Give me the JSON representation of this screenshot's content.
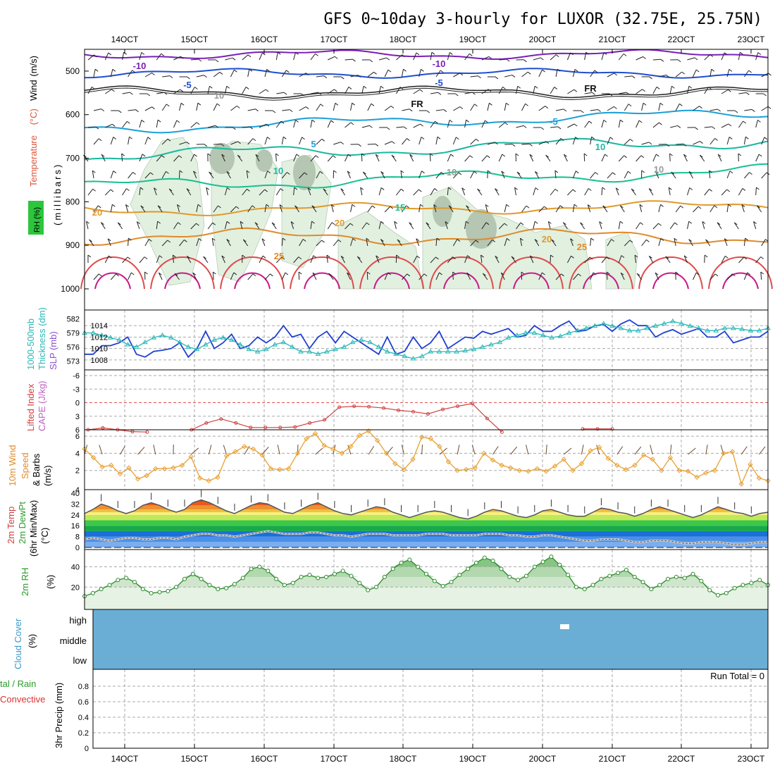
{
  "title": "GFS 0~10day 3-hourly for LUXOR (32.75E, 25.75N)",
  "x_ticks": [
    "14OCT",
    "15OCT",
    "16OCT",
    "17OCT",
    "18OCT",
    "19OCT",
    "20OCT",
    "21OCT",
    "22OCT",
    "23OCT"
  ],
  "colors": {
    "blue": "#1f3fd0",
    "cyan": "#2ab8b8",
    "red": "#d33",
    "orange": "#e8a030",
    "green": "#3a3",
    "cloud": "#6aaed6"
  },
  "chart_data": [
    {
      "type": "line",
      "name": "upper-air",
      "ylabel_parts": [
        "Temperature",
        "(°C)",
        "Wind",
        "(m/s)"
      ],
      "rh_label": "RH (%)",
      "axis_label": "(millibars)",
      "ylim": [
        1000,
        450
      ],
      "yticks": [
        500,
        600,
        700,
        800,
        900,
        1000
      ],
      "contour_labels": [
        "-10",
        "-10",
        "-5",
        "-5",
        "FR",
        "FR",
        "-5",
        "5",
        "10",
        "10",
        "15",
        "20",
        "20",
        "20",
        "25",
        "25",
        "10",
        "10",
        "10"
      ]
    },
    {
      "type": "line",
      "name": "slp-thickness",
      "ylabel_left": [
        "1000-500mb",
        "Thickness (dm)"
      ],
      "ylabel_right": "SLP (mb)",
      "thickness_ticks": [
        573,
        576,
        579,
        582
      ],
      "slp_ticks": [
        1008,
        1010,
        1012,
        1014
      ],
      "slp": [
        1009,
        1009,
        1010.5,
        1010.5,
        1011,
        1012,
        1009,
        1008.5,
        1009.5,
        1009.7,
        1010,
        1011,
        1008.5,
        1010,
        1013,
        1010,
        1011,
        1012.5,
        1010,
        1010.5,
        1012,
        1011,
        1012,
        1014,
        1012,
        1012.5,
        1010,
        1012,
        1013,
        1011,
        1013,
        1012,
        1011,
        1010,
        1009,
        1012,
        1009,
        1009.5,
        1012,
        1010,
        1011,
        1013,
        1010,
        1011,
        1012,
        1011.8,
        1013,
        1012.5,
        1013,
        1013.5,
        1012,
        1012.3,
        1014,
        1013,
        1013,
        1014,
        1014.8,
        1013,
        1013.2,
        1014,
        1014.2,
        1013,
        1014.3,
        1015,
        1014,
        1014,
        1012,
        1012.8,
        1013.3,
        1012.5,
        1013,
        1013.5,
        1012,
        1012,
        1013,
        1011,
        1011.5,
        1012,
        1012,
        1013
      ],
      "thickness": [
        579,
        579,
        578.5,
        578,
        577.5,
        576.5,
        576,
        577,
        578,
        578.5,
        578,
        577,
        576,
        575.5,
        576.5,
        577.5,
        578,
        577.5,
        576.5,
        575.5,
        575,
        575.5,
        576.5,
        577,
        576,
        575,
        575,
        574.5,
        575,
        575.5,
        576,
        577,
        577.5,
        577,
        576,
        575,
        574.5,
        574,
        573.5,
        574,
        575,
        575,
        575,
        575,
        575.2,
        575.5,
        576,
        576.5,
        577,
        578,
        578.5,
        579,
        579,
        578.5,
        578,
        578.3,
        579,
        579.5,
        580,
        580.5,
        581,
        580.5,
        580,
        579.5,
        579.5,
        580,
        580.5,
        581,
        581.5,
        581,
        580.5,
        580,
        579.5,
        579.5,
        580,
        580,
        579.8,
        579.5,
        579.5,
        580
      ]
    },
    {
      "type": "line",
      "name": "stability",
      "ylabel_left": "Lifted Index",
      "ylabel_right": "CAPE (J/kg)",
      "ytick_labels": [
        "-6",
        "-3",
        "0",
        "3",
        "6"
      ],
      "li": [
        6,
        5.6,
        6,
        6.4,
        6.5,
        null,
        null,
        6,
        4.5,
        3.6,
        4.5,
        5.5,
        5.5,
        5.5,
        5.4,
        4.5,
        3.8,
        1,
        0.8,
        0.9,
        1.2,
        1.7,
        2,
        2.5,
        1.5,
        0.8,
        0.2,
        3.5,
        6.5,
        null,
        null,
        null,
        null,
        null,
        null,
        null,
        null,
        null,
        null,
        null,
        null,
        null,
        null,
        5.8,
        5.8,
        5.8,
        null
      ]
    },
    {
      "type": "line",
      "name": "10m-wind",
      "ylabel_parts": [
        "10m Wind",
        "Speed",
        "& Barbs",
        "(m/s)"
      ],
      "ylim": [
        0,
        6.5
      ],
      "yticks": [
        2,
        4,
        6
      ],
      "speed": [
        4.5,
        3.5,
        2.4,
        2.6,
        1.6,
        2.3,
        1.0,
        1.4,
        2.2,
        2.2,
        2.3,
        2.6,
        3.6,
        1.1,
        0.8,
        1.2,
        3.7,
        4.2,
        4.8,
        4.5,
        3.8,
        2.2,
        2.1,
        2.2,
        4.0,
        5.7,
        6.3,
        4.9,
        4.5,
        4.0,
        4.8,
        6.1,
        6.6,
        5.5,
        4.0,
        2.8,
        2.1,
        3.3,
        5.9,
        5.7,
        4.8,
        3.0,
        2.0,
        2.1,
        2.3,
        4.0,
        3.2,
        2.6,
        2.3,
        2.0,
        1.9,
        2.2,
        1.9,
        2.5,
        3.3,
        2.0,
        2.8,
        4.3,
        4.7,
        3.4,
        2.6,
        2.1,
        2.6,
        3.8,
        3.3,
        2.0,
        3.5,
        2.0,
        1.9,
        1.2,
        1.7,
        2.0,
        4.0,
        4.2,
        0.4,
        2.7,
        1.1,
        0.8
      ]
    },
    {
      "type": "area",
      "name": "2m-temp",
      "ylabel_parts": [
        "2m Temp",
        "2m DewPt",
        "(6hr Min/Max)",
        "(°C)"
      ],
      "ylim": [
        0,
        40
      ],
      "ytick_labels": [
        "0",
        "8",
        "16",
        "24",
        "32",
        "40"
      ],
      "temp": [
        25,
        28,
        32,
        30,
        27,
        25,
        27,
        31,
        33,
        31,
        28,
        26,
        28,
        33,
        35,
        33,
        30,
        27,
        25,
        28,
        31,
        33,
        32,
        29,
        26,
        25,
        28,
        31,
        33,
        30,
        27,
        25,
        24,
        26,
        28,
        30,
        29,
        26,
        24,
        22,
        24,
        26,
        27,
        26,
        24,
        22,
        21,
        23,
        26,
        28,
        27,
        25,
        23,
        22,
        24,
        27,
        28,
        26,
        24,
        23,
        23,
        26,
        29,
        28,
        26,
        25,
        23,
        25,
        28,
        30,
        28,
        26,
        24,
        22,
        24,
        27,
        30,
        28,
        26,
        25,
        23,
        25,
        26
      ],
      "dew": [
        6,
        7,
        6,
        5,
        6,
        7,
        7,
        6,
        6,
        7,
        7,
        6,
        8,
        9,
        10,
        10,
        9,
        9,
        8,
        9,
        10,
        11,
        12,
        11,
        10,
        10,
        10,
        11,
        11,
        10,
        9,
        9,
        8,
        9,
        10,
        10,
        10,
        9,
        9,
        9,
        9,
        10,
        10,
        10,
        9,
        9,
        9,
        9,
        10,
        10,
        10,
        9,
        9,
        8,
        8,
        9,
        9,
        8,
        7,
        6,
        5,
        5,
        6,
        6,
        6,
        5,
        4,
        4,
        5,
        5,
        5,
        4,
        3,
        3,
        4,
        4,
        4,
        3,
        2,
        2,
        3,
        4,
        4
      ]
    },
    {
      "type": "area",
      "name": "2m-rh",
      "ylabel": "2m RH",
      "yunit": "(%)",
      "ylim": [
        0,
        55
      ],
      "yticks": [
        20,
        40
      ],
      "rh": [
        11,
        14,
        18,
        22,
        27,
        29,
        25,
        18,
        14,
        15,
        16,
        20,
        28,
        33,
        28,
        22,
        18,
        19,
        23,
        29,
        38,
        40,
        36,
        28,
        22,
        24,
        30,
        32,
        29,
        30,
        33,
        36,
        31,
        24,
        17,
        20,
        30,
        38,
        44,
        47,
        40,
        33,
        26,
        21,
        25,
        32,
        38,
        44,
        49,
        46,
        38,
        30,
        27,
        31,
        40,
        45,
        50,
        42,
        32,
        20,
        18,
        22,
        28,
        31,
        34,
        37,
        30,
        25,
        18,
        22,
        28,
        30,
        29,
        33,
        26,
        17,
        12,
        14,
        19,
        22,
        24,
        27,
        22
      ]
    },
    {
      "type": "heatmap",
      "name": "cloud-cover",
      "ylabel": "Cloud Cover",
      "yunit": "(%)",
      "levels": [
        "high",
        "middle",
        "low"
      ]
    },
    {
      "type": "line",
      "name": "precip",
      "ylabel_parts": [
        "3hr Precip (mm)"
      ],
      "legend_left": [
        "tal / Rain",
        "Convective"
      ],
      "ylim": [
        0,
        1.0
      ],
      "ytick_labels": [
        "0",
        "0.2",
        "0.4",
        "0.6",
        "0.8"
      ],
      "run_total": "Run Total = 0"
    }
  ]
}
